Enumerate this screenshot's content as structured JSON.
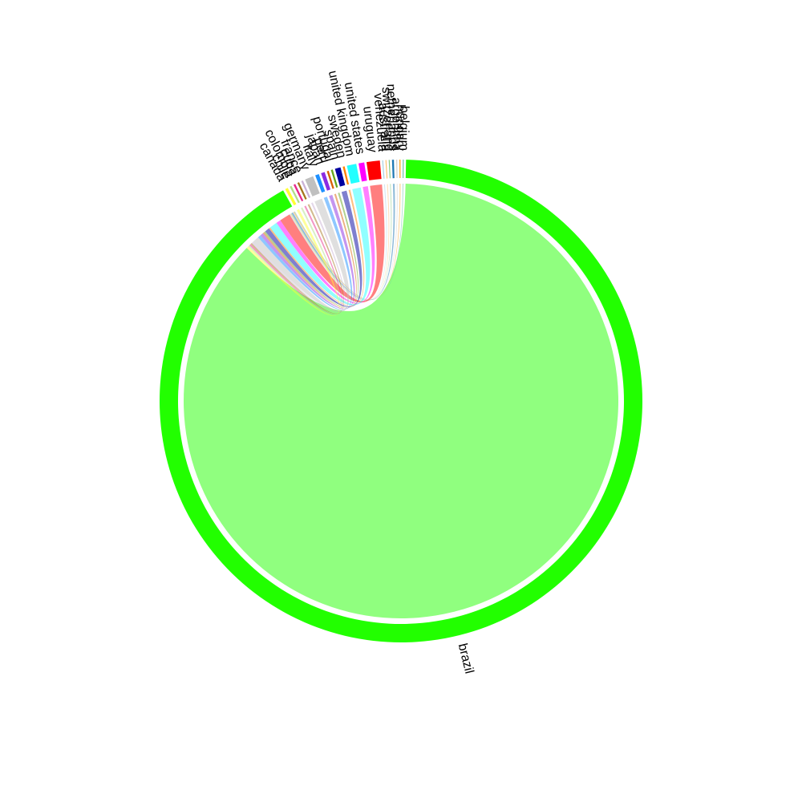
{
  "chart_data": {
    "type": "chord",
    "title": "",
    "nodes": [
      {
        "name": "brazil",
        "value": 1446,
        "color": "#22ff00"
      },
      {
        "name": "canada",
        "value": 3,
        "color": "#ffff33"
      },
      {
        "name": "chile",
        "value": 2,
        "color": "#b2df8a"
      },
      {
        "name": "colombia",
        "value": 2,
        "color": "#e7298a"
      },
      {
        "name": "cuba",
        "value": 2,
        "color": "#a6761d"
      },
      {
        "name": "france",
        "value": 2,
        "color": "#cab2d6"
      },
      {
        "name": "germany",
        "value": 9,
        "color": "#c0c0c0"
      },
      {
        "name": "italy",
        "value": 4,
        "color": "#1e90ff"
      },
      {
        "name": "japan",
        "value": 4,
        "color": "#8a2be2"
      },
      {
        "name": "peru",
        "value": 2,
        "color": "#d95f02"
      },
      {
        "name": "portugal",
        "value": 2,
        "color": "#66a61e"
      },
      {
        "name": "spain",
        "value": 6,
        "color": "#0000a0"
      },
      {
        "name": "sweden",
        "value": 2,
        "color": "#ff7f00"
      },
      {
        "name": "united kingdom",
        "value": 10,
        "color": "#22ffff"
      },
      {
        "name": "united states",
        "value": 6,
        "color": "#ff00ff"
      },
      {
        "name": "uruguay",
        "value": 14,
        "color": "#ff0000"
      },
      {
        "name": "venezuela",
        "value": 1,
        "color": "#a6cee3"
      },
      {
        "name": "australia",
        "value": 1,
        "color": "#fdbf6f"
      },
      {
        "name": "switzerland",
        "value": 1,
        "color": "#7fc97f"
      },
      {
        "name": "netherlands",
        "value": 2,
        "color": "#1f78b4"
      },
      {
        "name": "argentina",
        "value": 1,
        "color": "#cccccc"
      },
      {
        "name": "hungary",
        "value": 1,
        "color": "#ff9900"
      },
      {
        "name": "belgium",
        "value": 1,
        "color": "#66c2a5"
      }
    ]
  }
}
